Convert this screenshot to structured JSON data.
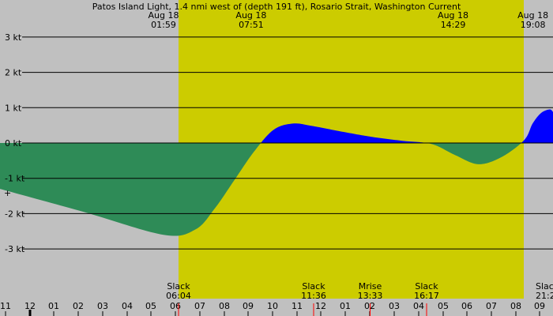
{
  "chart_data": {
    "type": "area",
    "title": "Patos Island Light, 1.4 nmi west of (depth 191 ft), Rosario Strait, Washington Current",
    "unit": "kt",
    "xlim": [
      11.0,
      21.2
    ],
    "ylim": [
      -3.7,
      3.3
    ],
    "y_ticks": [
      3,
      2,
      1,
      0,
      -1,
      -2,
      -3
    ],
    "y_tick_labels": [
      "3 kt",
      "2 kt",
      "1 kt",
      "0 kt",
      "-1 kt",
      "-2 kt",
      "-3 kt"
    ],
    "colors": {
      "background": "#c0c0c0",
      "daylight": "#cccc00",
      "flood": "#0000ff",
      "ebb": "#2e8b57",
      "grid": "#000000",
      "moon_marker": "#ff0000"
    },
    "daylight": {
      "start_hour": 12.07,
      "end_hour": 19.48
    },
    "curve": {
      "x": [
        11.0,
        11.5,
        11.98,
        12.5,
        13.0,
        13.5,
        14.0,
        14.5,
        15.0,
        15.5,
        16.0,
        16.5,
        17.0,
        17.5,
        18.0,
        18.5,
        19.0,
        19.5,
        20.0,
        20.5,
        21.0,
        21.2
      ],
      "y": [
        -1.3,
        -1.95,
        -2.6,
        -2.45,
        -1.85,
        -1.05,
        -0.25,
        0.37,
        0.55,
        0.48,
        0.32,
        0.17,
        0.06,
        -0.03,
        -0.34,
        -0.6,
        -0.4,
        0.08,
        0.55,
        0.85,
        0.95,
        0.88
      ]
    },
    "top_labels": [
      {
        "date": "Aug 18",
        "time": "01:59",
        "hour": 11.98
      },
      {
        "date": "Aug 18",
        "time": "07:51",
        "hour": 13.93
      },
      {
        "date": "Aug 18",
        "time": "14:29",
        "hour": 17.96
      },
      {
        "date": "Aug 18",
        "time": "19:08",
        "hour": 20.02
      }
    ],
    "events": [
      {
        "label": "Slack",
        "time": "06:04",
        "hour": 12.07
      },
      {
        "label": "Slack",
        "time": "11:36",
        "hour": 15.53
      },
      {
        "label": "Mrise",
        "time": "13:33",
        "hour": 16.46
      },
      {
        "label": "Slack",
        "time": "16:17",
        "hour": 17.39
      },
      {
        "label": "Slack",
        "time": "21:2",
        "hour": 21.2
      }
    ],
    "x_ticks": [
      {
        "label": "11",
        "hour": 11.0
      },
      {
        "label": "12",
        "hour": 11.24
      },
      {
        "label": "01",
        "hour": 11.45
      },
      {
        "label": "02",
        "hour": 11.65
      },
      {
        "label": "03",
        "hour": 11.86
      },
      {
        "label": "04",
        "hour": 12.07
      },
      {
        "label": "05",
        "hour": 12.28
      },
      {
        "label": "06",
        "hour": 12.49
      },
      {
        "label": "07",
        "hour": 12.7
      },
      {
        "label": "08",
        "hour": 12.91
      },
      {
        "label": "09",
        "hour": 13.12
      },
      {
        "label": "10",
        "hour": 13.33
      },
      {
        "label": "11",
        "hour": 13.54
      },
      {
        "label": "12",
        "hour": 13.75
      },
      {
        "label": "01",
        "hour": 13.96
      },
      {
        "label": "02",
        "hour": 14.17
      },
      {
        "label": "03",
        "hour": 14.38
      },
      {
        "label": "04",
        "hour": 14.59
      },
      {
        "label": "05",
        "hour": 14.8
      },
      {
        "label": "06",
        "hour": 15.01
      },
      {
        "label": "07",
        "hour": 15.22
      },
      {
        "label": "08",
        "hour": 15.43
      },
      {
        "label": "09",
        "hour": 15.64
      },
      {
        "label": "10",
        "hour": 15.85
      }
    ],
    "x_tick_display": [
      "11",
      "12",
      "01",
      "02",
      "03",
      "04",
      "05",
      "06",
      "07",
      "08",
      "09",
      "10",
      "11",
      "12",
      "01",
      "02",
      "03",
      "04",
      "05",
      "06",
      "07",
      "08",
      "09",
      "10"
    ],
    "left_marker": "+"
  }
}
